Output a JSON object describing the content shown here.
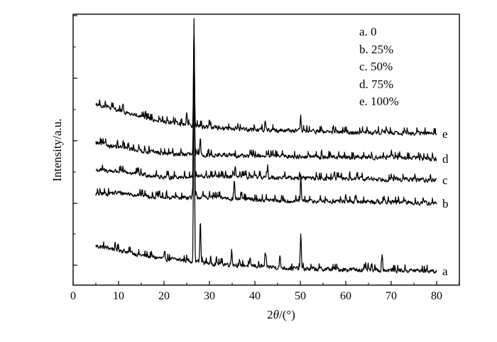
{
  "chart_data": {
    "type": "line",
    "xlabel_prefix": "2",
    "xlabel_theta": "θ",
    "xlabel_unit": "/(°)",
    "ylabel": "Intensity/a.u.",
    "xlim": [
      0,
      85
    ],
    "xticks": [
      0,
      10,
      20,
      30,
      40,
      50,
      60,
      70,
      80
    ],
    "y_ticks_unlabeled": true,
    "legend_position": "top-right",
    "legend": [
      "a. 0",
      "b. 25%",
      "c. 50%",
      "d. 75%",
      "e. 100%"
    ],
    "series": [
      {
        "label": "a",
        "name": "a. 0",
        "baseline": [
          [
            5,
            55
          ],
          [
            10,
            50
          ],
          [
            15,
            42
          ],
          [
            20,
            37
          ],
          [
            25,
            35
          ],
          [
            30,
            31
          ],
          [
            40,
            27
          ],
          [
            50,
            23
          ],
          [
            60,
            22
          ],
          [
            70,
            21
          ],
          [
            80,
            20
          ]
        ],
        "peaks": [
          [
            26.6,
            315
          ],
          [
            28.0,
            58
          ],
          [
            34.9,
            22
          ],
          [
            42.3,
            16
          ],
          [
            45.5,
            16
          ],
          [
            50.1,
            50
          ],
          [
            68.0,
            22
          ]
        ]
      },
      {
        "label": "b",
        "name": "b. 25%",
        "baseline": [
          [
            5,
            128
          ],
          [
            10,
            130
          ],
          [
            20,
            123
          ],
          [
            30,
            124
          ],
          [
            40,
            120
          ],
          [
            50,
            118
          ],
          [
            60,
            118
          ],
          [
            70,
            117
          ],
          [
            80,
            115
          ]
        ],
        "peaks": [
          [
            26.6,
            250
          ],
          [
            35.5,
            22
          ],
          [
            50.1,
            30
          ]
        ]
      },
      {
        "label": "c",
        "name": "c. 50%",
        "baseline": [
          [
            5,
            162
          ],
          [
            10,
            160
          ],
          [
            20,
            152
          ],
          [
            30,
            153
          ],
          [
            40,
            152
          ],
          [
            50,
            151
          ],
          [
            60,
            150
          ],
          [
            70,
            149
          ],
          [
            80,
            148
          ]
        ],
        "peaks": [
          [
            26.6,
            215
          ],
          [
            35.7,
            16
          ],
          [
            42.8,
            10
          ],
          [
            57.5,
            8
          ]
        ]
      },
      {
        "label": "d",
        "name": "d. 75%",
        "baseline": [
          [
            5,
            200
          ],
          [
            10,
            194
          ],
          [
            20,
            185
          ],
          [
            30,
            183
          ],
          [
            40,
            182
          ],
          [
            50,
            181
          ],
          [
            60,
            180
          ],
          [
            70,
            180
          ],
          [
            80,
            178
          ]
        ],
        "peaks": [
          [
            26.6,
            175
          ],
          [
            28.0,
            25
          ]
        ]
      },
      {
        "label": "e",
        "name": "e. 100%",
        "baseline": [
          [
            5,
            255
          ],
          [
            10,
            246
          ],
          [
            15,
            236
          ],
          [
            20,
            230
          ],
          [
            30,
            222
          ],
          [
            40,
            219
          ],
          [
            50,
            217
          ],
          [
            60,
            215
          ],
          [
            70,
            215
          ],
          [
            80,
            213
          ]
        ],
        "peaks": [
          [
            25.0,
            18
          ],
          [
            26.6,
            135
          ],
          [
            30.0,
            12
          ],
          [
            42.3,
            14
          ],
          [
            50.1,
            12
          ],
          [
            68.0,
            6
          ]
        ]
      }
    ]
  }
}
